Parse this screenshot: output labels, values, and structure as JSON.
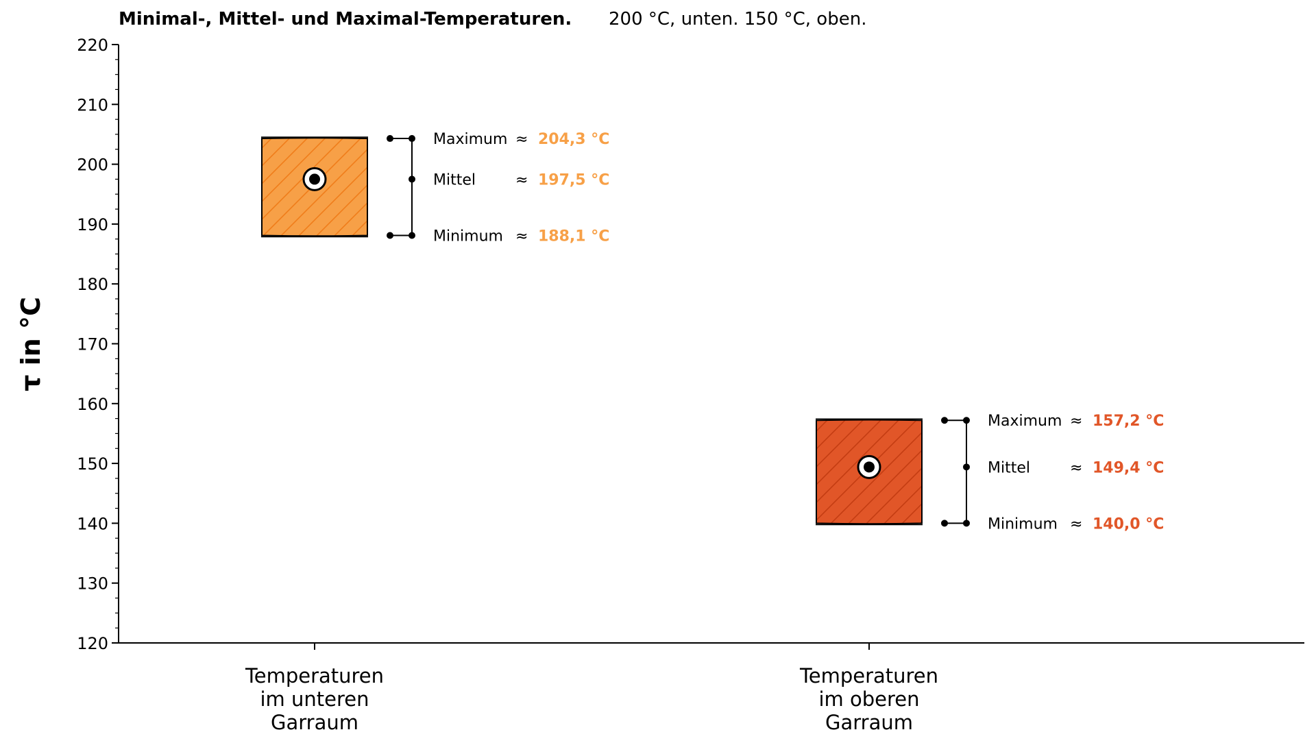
{
  "chart_data": {
    "type": "range",
    "title": "Minimal-, Mittel- und Maximal-Temperaturen.",
    "subtitle": "200 °C, unten. 150 °C, oben.",
    "ylabel": "τ in °C",
    "xlabel": "",
    "ylim": [
      120,
      220
    ],
    "yticks": [
      120,
      130,
      140,
      150,
      160,
      170,
      180,
      190,
      200,
      210,
      220
    ],
    "grid": false,
    "categories": [
      [
        "Temperaturen",
        "im unteren",
        "Garraum"
      ],
      [
        "Temperaturen",
        "im oberen",
        "Garraum"
      ]
    ],
    "series": [
      {
        "min": 188.1,
        "mean": 197.5,
        "max": 204.3,
        "color": "#f7a047",
        "hatch_color": "#f07d1a",
        "labels": {
          "max": "Maximum",
          "mean": "Mittel",
          "min": "Minimum"
        },
        "approx": "≈",
        "value_texts": {
          "max": "204,3 °C",
          "mean": "197,5 °C",
          "min": "188,1 °C"
        }
      },
      {
        "min": 140.0,
        "mean": 149.4,
        "max": 157.2,
        "color": "#e15628",
        "hatch_color": "#c43d12",
        "labels": {
          "max": "Maximum",
          "mean": "Mittel",
          "min": "Minimum"
        },
        "approx": "≈",
        "value_texts": {
          "max": "157,2 °C",
          "mean": "149,4 °C",
          "min": "140,0 °C"
        }
      }
    ]
  }
}
